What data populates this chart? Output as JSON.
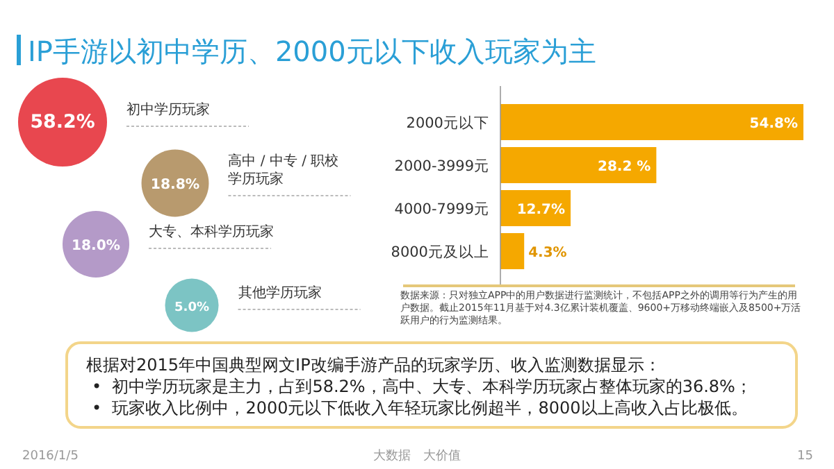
{
  "chart_data": [
    {
      "type": "other",
      "title": "IP手游以初中学历、2000元以下收入玩家为主",
      "categories": [
        "初中学历玩家",
        "高中 / 中专 / 职校学历玩家",
        "大专、本科学历玩家",
        "其他学历玩家"
      ],
      "values": [
        58.2,
        18.8,
        18.0,
        5.0
      ],
      "value_labels": [
        "58.2%",
        "18.8%",
        "18.0%",
        "5.0%"
      ],
      "colors": [
        "#e8474f",
        "#b89a6e",
        "#b49ac8",
        "#7cc4c4"
      ],
      "annotations": [
        "根据对2015年中国典型网文IP改编手游产品的玩家学历、收入监测数据显示：",
        "•  初中学历玩家是主力，占到58.2%，高中、大专、本科学历玩家占整体玩家的36.8%；",
        "•  玩家收入比例中，2000元以下低收入年轻玩家比例超半，8000以上高收入占比极低。",
        "2016/1/5",
        "大数据　大价值",
        "15"
      ]
    },
    {
      "type": "bar",
      "orientation": "horizontal",
      "categories": [
        "2000元以下",
        "2000-3999元",
        "4000-7999元",
        "8000元及以上"
      ],
      "values": [
        54.8,
        28.2,
        12.7,
        4.3
      ],
      "value_labels": [
        "54.8%",
        "28.2 %",
        "12.7%",
        "4.3%"
      ],
      "color": "#f5a800",
      "annotations": [
        "数据来源：只对独立APP中的用户数据进行监测统计，不包括APP之外的调用等行为产生的用户数据。截止2015年11月基于对4.3亿累计装机覆盖、9600+万移动终端嵌入及8500+万活跃用户的行为监测结果。"
      ]
    }
  ]
}
